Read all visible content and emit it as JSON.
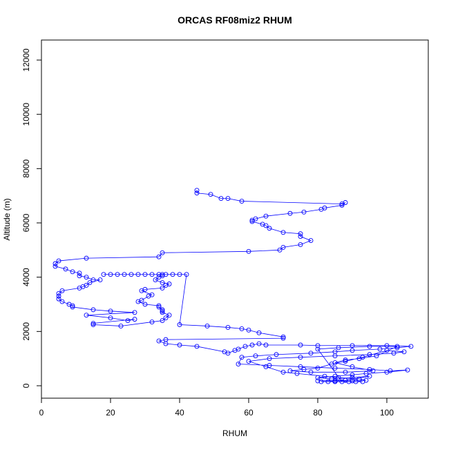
{
  "chart_data": {
    "type": "line",
    "title": "ORCAS RF08miz2 RHUM",
    "x_label": "RHUM",
    "y_label": "Altitude (m)",
    "xlim": [
      0,
      112
    ],
    "ylim": [
      -458,
      12738
    ],
    "xticks": [
      0,
      20,
      40,
      60,
      80,
      100
    ],
    "yticks": [
      0,
      2000,
      4000,
      6000,
      8000,
      10000,
      12000
    ],
    "grid": false,
    "markers": true,
    "series": [
      {
        "name": "RHUM",
        "color": "#0000ff",
        "x": [
          45,
          45,
          49,
          52,
          54,
          58,
          87,
          88,
          87,
          82,
          81,
          76,
          72,
          65,
          62,
          61,
          61,
          64,
          65,
          66,
          70,
          75,
          75,
          78,
          75,
          70,
          69,
          60,
          35,
          34,
          13,
          5,
          4,
          4,
          7,
          9,
          11,
          11,
          13,
          15,
          17,
          14,
          13,
          12,
          11,
          6,
          5,
          5,
          5,
          6,
          8,
          9,
          9,
          15,
          20,
          27,
          13,
          20,
          25,
          27,
          15,
          15,
          23,
          32,
          35,
          36,
          37,
          35,
          35,
          35,
          34,
          34,
          30,
          28,
          29,
          31,
          32,
          29,
          30,
          35,
          36,
          37,
          35,
          33,
          34,
          35,
          35,
          18,
          20,
          22,
          24,
          26,
          28,
          30,
          32,
          34,
          36,
          38,
          40,
          42,
          40,
          48,
          54,
          58,
          60,
          63,
          70,
          70,
          36,
          34,
          36,
          40,
          45,
          53,
          54,
          56,
          57,
          59,
          61,
          63,
          65,
          75,
          80,
          90,
          100,
          107,
          103,
          98,
          90,
          85,
          78,
          68,
          62,
          58,
          57,
          66,
          75,
          85,
          95,
          101,
          106,
          100,
          94,
          90,
          85,
          80,
          84,
          90,
          95,
          88,
          80,
          85,
          90,
          94,
          92,
          86,
          82,
          74,
          70,
          65,
          60,
          66,
          75,
          85,
          95,
          102,
          105,
          100,
          93,
          88,
          84,
          80,
          76,
          72,
          78,
          88,
          96,
          90,
          85,
          88,
          92,
          97,
          103,
          95,
          86,
          80,
          87,
          89,
          91,
          93,
          81,
          83,
          85
        ],
        "values": [
          7200,
          7100,
          7050,
          6900,
          6900,
          6800,
          6700,
          6750,
          6650,
          6550,
          6500,
          6400,
          6350,
          6250,
          6150,
          6100,
          6050,
          5950,
          5900,
          5800,
          5650,
          5600,
          5500,
          5350,
          5200,
          5100,
          5000,
          4950,
          4900,
          4750,
          4700,
          4600,
          4500,
          4400,
          4300,
          4200,
          4150,
          4050,
          4000,
          3900,
          3900,
          3800,
          3700,
          3650,
          3600,
          3500,
          3400,
          3300,
          3200,
          3100,
          3000,
          2950,
          2900,
          2800,
          2750,
          2700,
          2600,
          2500,
          2400,
          2450,
          2300,
          2250,
          2200,
          2350,
          2400,
          2500,
          2600,
          2700,
          2750,
          2800,
          2900,
          2950,
          3000,
          3100,
          3150,
          3300,
          3350,
          3500,
          3550,
          3600,
          3700,
          3750,
          3800,
          3900,
          4000,
          4050,
          4100,
          4100,
          4100,
          4100,
          4100,
          4100,
          4100,
          4100,
          4100,
          4100,
          4100,
          4100,
          4100,
          4100,
          2250,
          2200,
          2150,
          2100,
          2050,
          1950,
          1800,
          1750,
          1700,
          1650,
          1550,
          1500,
          1450,
          1250,
          1200,
          1300,
          1350,
          1450,
          1500,
          1550,
          1500,
          1500,
          1480,
          1480,
          1480,
          1450,
          1400,
          1350,
          1300,
          1250,
          1200,
          1150,
          1100,
          1050,
          800,
          750,
          700,
          650,
          600,
          550,
          580,
          500,
          450,
          400,
          350,
          300,
          250,
          300,
          350,
          200,
          180,
          180,
          180,
          200,
          250,
          300,
          350,
          450,
          500,
          700,
          900,
          1000,
          1050,
          1100,
          1150,
          1200,
          1250,
          1300,
          1050,
          900,
          800,
          650,
          600,
          550,
          500,
          500,
          550,
          700,
          850,
          950,
          1000,
          1100,
          1450,
          1450,
          1400,
          1350,
          150,
          150,
          150,
          150,
          150,
          150,
          150
        ]
      }
    ]
  }
}
